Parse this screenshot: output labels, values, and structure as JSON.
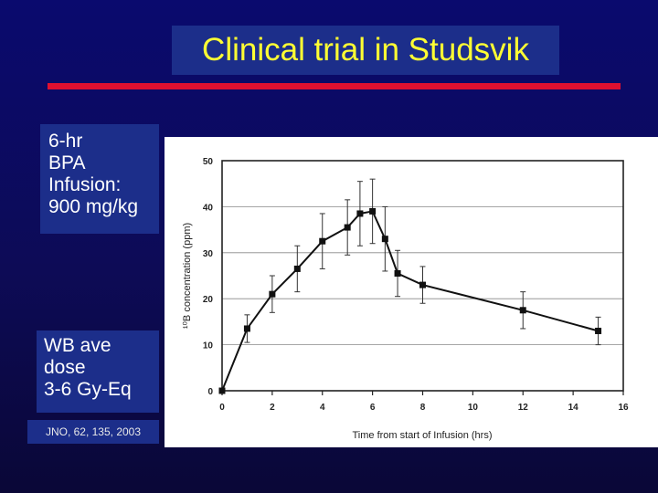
{
  "slide": {
    "title": "Clinical trial in Studsvik",
    "info_top": [
      "6-hr",
      "BPA",
      "Infusion:",
      "900 mg/kg"
    ],
    "info_bottom": [
      "WB ave",
      "dose",
      "3-6 Gy-Eq"
    ],
    "citation": "JNO, 62, 135, 2003",
    "colors": {
      "background": "#0a0a6e",
      "title_text": "#ffff33",
      "box": "#1c2e8a",
      "rule": "#e01030"
    }
  },
  "chart_data": {
    "type": "line",
    "xlabel": "Time from start of Infusion (hrs)",
    "ylabel": "¹⁰B concentration (ppm)",
    "xlim": [
      0,
      16
    ],
    "ylim": [
      0,
      50
    ],
    "x_ticks": [
      0,
      2,
      4,
      6,
      8,
      10,
      12,
      14,
      16
    ],
    "y_ticks": [
      0,
      10,
      20,
      30,
      40,
      50
    ],
    "grid": "horizontal",
    "series": [
      {
        "points": [
          {
            "x": 0,
            "y": 0
          },
          {
            "x": 1,
            "y": 13.5,
            "err": 3
          },
          {
            "x": 2,
            "y": 21,
            "err": 4
          },
          {
            "x": 3,
            "y": 26.5,
            "err": 5
          },
          {
            "x": 4,
            "y": 32.5,
            "err": 6
          },
          {
            "x": 5,
            "y": 35.5,
            "err": 6
          },
          {
            "x": 5.5,
            "y": 38.5,
            "err": 7
          },
          {
            "x": 6,
            "y": 39,
            "err": 7
          },
          {
            "x": 6.5,
            "y": 33,
            "err": 7
          },
          {
            "x": 7,
            "y": 25.5,
            "err": 5
          },
          {
            "x": 8,
            "y": 23,
            "err": 4
          },
          {
            "x": 12,
            "y": 17.5,
            "err": 4
          },
          {
            "x": 15,
            "y": 13,
            "err": 3
          }
        ]
      }
    ]
  }
}
